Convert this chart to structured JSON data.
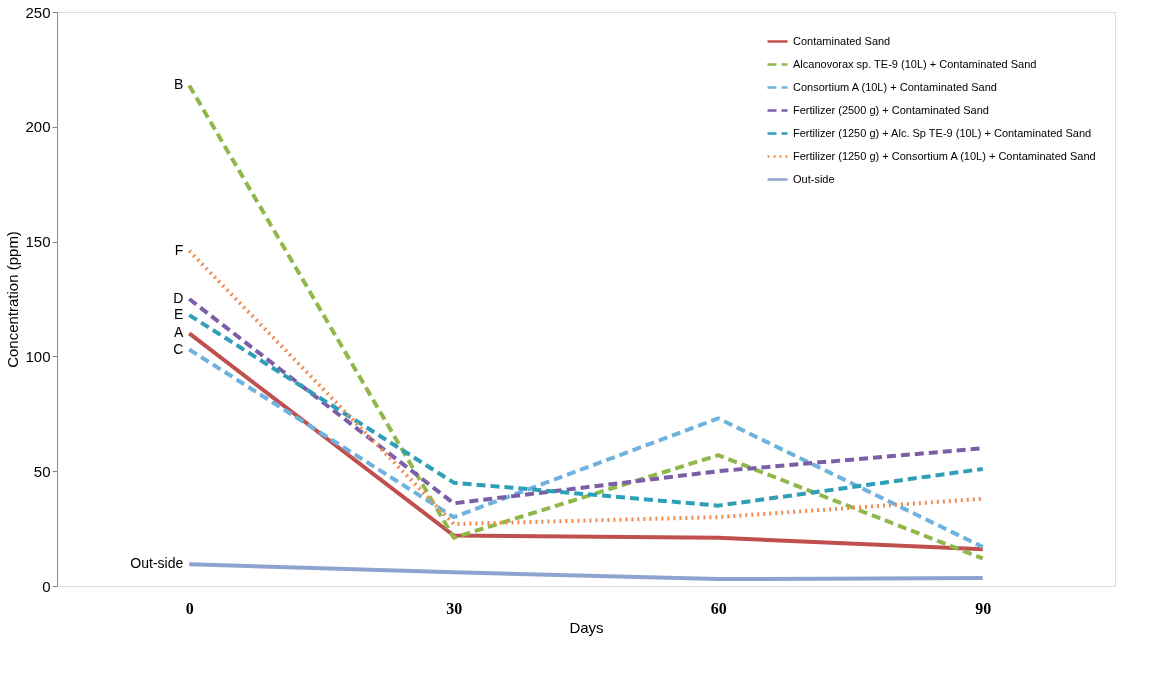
{
  "chart_data": {
    "type": "line",
    "categories": [
      "0",
      "30",
      "60",
      "90"
    ],
    "xlabel": "Days",
    "ylabel": "Concentration (ppm)",
    "ylim": [
      0,
      250
    ],
    "yticks": [
      0,
      50,
      100,
      150,
      200,
      250
    ],
    "grid": false,
    "legend": "top right",
    "marker": "none",
    "series": [
      {
        "name": "Contaminated Sand",
        "color": "#c0504d",
        "line_style": "solid",
        "values": [
          110,
          22,
          21,
          16
        ]
      },
      {
        "name": "Alcanovorax sp. TE-9 (10L) + Contaminated Sand",
        "color": "#8fb84a",
        "line_style": "dashed",
        "values": [
          218,
          21,
          57,
          12
        ]
      },
      {
        "name": "Consortium A (10L) + Contaminated Sand",
        "color": "#6fb2de",
        "line_style": "dashed",
        "values": [
          103,
          30,
          73,
          17
        ]
      },
      {
        "name": "Fertilizer (2500 g) + Contaminated Sand",
        "color": "#7b5ea7",
        "line_style": "dashed",
        "values": [
          125,
          36,
          50,
          60
        ]
      },
      {
        "name": "Fertilizer (1250 g) + Alc. Sp TE-9 (10L) + Contaminated Sand",
        "color": "#2f9fb8",
        "line_style": "dashed",
        "values": [
          118,
          45,
          35,
          51
        ]
      },
      {
        "name": "Fertilizer (1250 g) + Consortium A (10L) + Contaminated Sand",
        "color": "#f08c50",
        "line_style": "dotted",
        "values": [
          146,
          27,
          30,
          38
        ]
      },
      {
        "name": "Out-side",
        "color": "#8ea4d0",
        "line_style": "solid",
        "values": [
          9.5,
          6,
          3,
          3.5
        ]
      }
    ],
    "annotations": [
      {
        "text": "B",
        "x": "0",
        "y": 218
      },
      {
        "text": "F",
        "x": "0",
        "y": 146
      },
      {
        "text": "D",
        "x": "0",
        "y": 125
      },
      {
        "text": "E",
        "x": "0",
        "y": 118
      },
      {
        "text": "A",
        "x": "0",
        "y": 110
      },
      {
        "text": "C",
        "x": "0",
        "y": 103
      },
      {
        "text": "Out-side",
        "x": "0",
        "y": 9.5
      }
    ]
  }
}
